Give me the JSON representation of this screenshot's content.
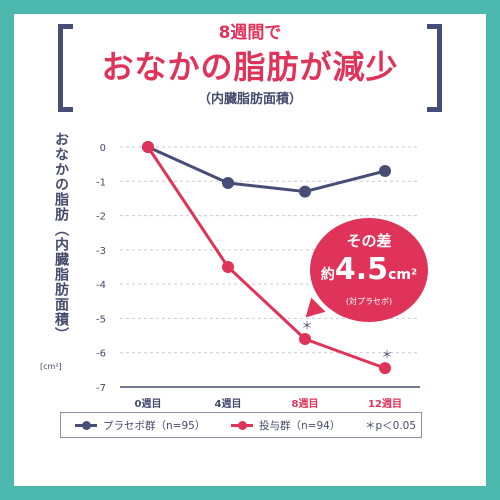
{
  "title": {
    "top": "8週間で",
    "main": "おなかの脂肪が減少",
    "sub": "（内臓脂肪面積）"
  },
  "ylabel": "おなかの脂肪（内臓脂肪面積）",
  "yunit": "[cm²]",
  "callout": {
    "line1": "その差",
    "prefix": "約",
    "value": "4.5",
    "unit": "cm²",
    "line3": "(対プラセボ)"
  },
  "legend": {
    "placebo": "プラセボ群（n=95）",
    "treatment": "投与群（n=94）",
    "note": "＊p＜0.05"
  },
  "colors": {
    "placebo": "#474e76",
    "treatment": "#e0335a",
    "background": "#4bb7ad",
    "axis_text": "#444b6c",
    "grid": "#c9cbd6"
  },
  "chart_data": {
    "type": "line",
    "categories": [
      "0週目",
      "4週目",
      "8週目",
      "12週目"
    ],
    "highlighted_categories": [
      "8週目",
      "12週目"
    ],
    "series": [
      {
        "name": "プラセボ群（n=95）",
        "values": [
          0,
          -1.05,
          -1.3,
          -0.7
        ]
      },
      {
        "name": "投与群（n=94）",
        "values": [
          0,
          -3.5,
          -5.6,
          -6.45
        ],
        "significance": [
          "",
          "",
          "＊",
          "＊"
        ]
      }
    ],
    "ylim": [
      -7,
      0
    ],
    "yticks": [
      "0",
      "-1",
      "-2",
      "-3",
      "-4",
      "-5",
      "-6",
      "-7"
    ],
    "grid": true
  }
}
